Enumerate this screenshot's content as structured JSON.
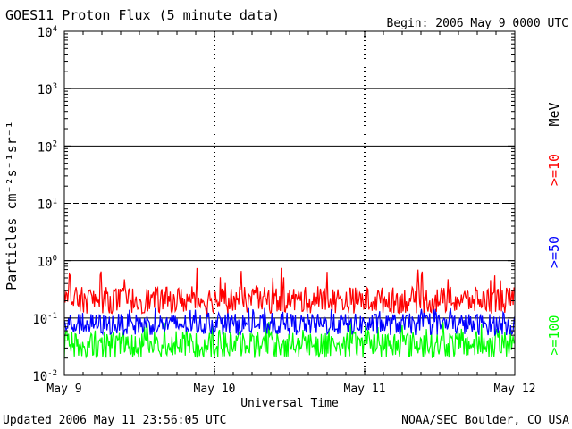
{
  "header": {
    "title": "GOES11 Proton Flux (5 minute data)",
    "begin": "Begin: 2006 May 9 0000 UTC"
  },
  "footer": {
    "updated": "Updated 2006 May 11 23:56:05 UTC",
    "source": "NOAA/SEC Boulder, CO USA"
  },
  "chart_data": {
    "type": "line",
    "title": "GOES11 Proton Flux (5 minute data)",
    "xlabel": "Universal Time",
    "ylabel": "Particles cm⁻²s⁻¹sr⁻¹",
    "yscale": "log",
    "ylim": [
      0.01,
      10000
    ],
    "yticks": [
      {
        "value": 10000,
        "base": "10",
        "exp": "4"
      },
      {
        "value": 1000,
        "base": "10",
        "exp": "3"
      },
      {
        "value": 100,
        "base": "10",
        "exp": "2"
      },
      {
        "value": 10,
        "base": "10",
        "exp": "1"
      },
      {
        "value": 1,
        "base": "10",
        "exp": "0"
      },
      {
        "value": 0.1,
        "base": "10",
        "exp": "-1"
      },
      {
        "value": 0.01,
        "base": "10",
        "exp": "-2"
      }
    ],
    "xrange_days": [
      0,
      3
    ],
    "x_tick_labels": [
      "May 9",
      "May 10",
      "May 11",
      "May 12"
    ],
    "legend_unit": "MeV",
    "series": [
      {
        "name": ">=10",
        "color": "#ff0000",
        "typical_range": [
          0.12,
          0.35
        ],
        "max": 0.75
      },
      {
        "name": ">=50",
        "color": "#0000ff",
        "typical_range": [
          0.05,
          0.12
        ],
        "max": 0.15
      },
      {
        "name": ">=100",
        "color": "#00ff00",
        "typical_range": [
          0.02,
          0.06
        ],
        "max": 0.09
      }
    ],
    "threshold_lines": [
      {
        "value": 10,
        "style": "dashed"
      },
      {
        "value": 0.1,
        "style": "solid"
      }
    ]
  }
}
